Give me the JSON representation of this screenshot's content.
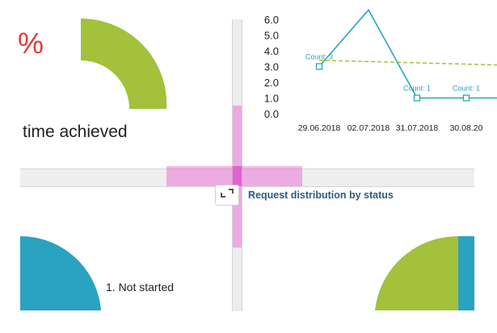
{
  "dashboard": {
    "percent_fragment": "%",
    "kpi_label": "time achieved",
    "request_distribution_title": "Request distribution by status",
    "legend_not_started": "1. Not started",
    "colors": {
      "green": "#a3c13a",
      "teal": "#2aa3c0",
      "red": "#e03a3a",
      "pink": "#e950d2",
      "title_blue": "#2a5d84"
    }
  },
  "chart_data": {
    "type": "line",
    "y_ticks": [
      "0.0",
      "1.0",
      "2.0",
      "3.0",
      "4.0",
      "5.0",
      "6.0"
    ],
    "x_ticks": [
      "29.06.2018",
      "02.07.2018",
      "31.07.2018",
      "30.08.20"
    ],
    "ylim": [
      0,
      6
    ],
    "series": [
      {
        "values": [
          3,
          6.6,
          1,
          1
        ],
        "style": "solid",
        "color": "#2aa3c0"
      },
      {
        "values": [
          3.4,
          3.1
        ],
        "style": "dashed",
        "color": "#a3c13a"
      }
    ],
    "data_labels": [
      "Count: 3",
      "Count: 1",
      "Count: 1"
    ]
  },
  "icons": {
    "resize_handle": "resize-corner-icon"
  }
}
